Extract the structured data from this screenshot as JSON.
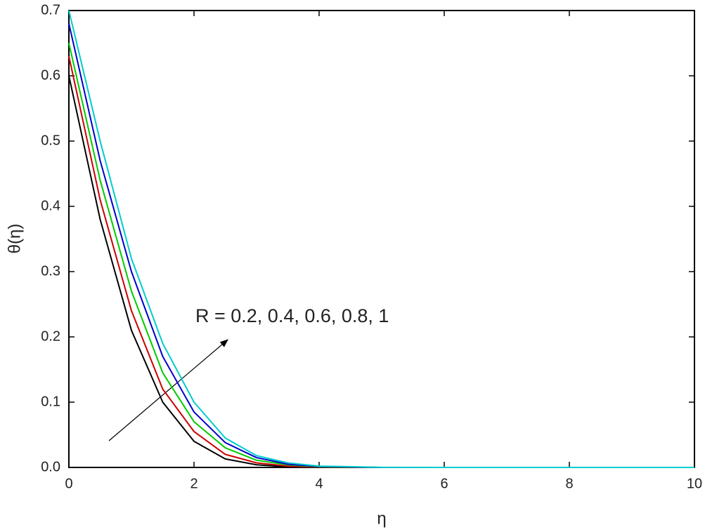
{
  "chart_data": {
    "type": "line",
    "xlabel": "η",
    "ylabel": "θ(η)",
    "annotation": "R = 0.2, 0.4, 0.6, 0.8, 1",
    "x": [
      0,
      0.5,
      1,
      1.5,
      2,
      2.5,
      3,
      3.5,
      4,
      5,
      6,
      8,
      10
    ],
    "series": [
      {
        "color": "#000000",
        "values": [
          0.6,
          0.38,
          0.21,
          0.1,
          0.04,
          0.013,
          0.004,
          0.001,
          0,
          0,
          0,
          0,
          0
        ]
      },
      {
        "color": "#cc0000",
        "values": [
          0.63,
          0.41,
          0.24,
          0.12,
          0.055,
          0.02,
          0.007,
          0.002,
          0.0005,
          0,
          0,
          0,
          0
        ]
      },
      {
        "color": "#00cc00",
        "values": [
          0.65,
          0.44,
          0.27,
          0.145,
          0.07,
          0.03,
          0.011,
          0.004,
          0.001,
          0,
          0,
          0,
          0
        ]
      },
      {
        "color": "#0000cc",
        "values": [
          0.68,
          0.47,
          0.3,
          0.17,
          0.085,
          0.038,
          0.015,
          0.005,
          0.0015,
          0,
          0,
          0,
          0
        ]
      },
      {
        "color": "#00cccc",
        "values": [
          0.7,
          0.5,
          0.32,
          0.19,
          0.1,
          0.045,
          0.018,
          0.007,
          0.002,
          0.0002,
          0,
          0,
          0
        ]
      }
    ],
    "xlim": [
      0,
      10
    ],
    "xticks": [
      0,
      2,
      4,
      6,
      8,
      10
    ],
    "ylim": [
      0,
      0.7
    ],
    "yticks": [
      {
        "value": 0,
        "label": "0.0"
      },
      0.1,
      0.2,
      0.3,
      0.4,
      0.5,
      0.6,
      0.7
    ],
    "grid": false
  }
}
